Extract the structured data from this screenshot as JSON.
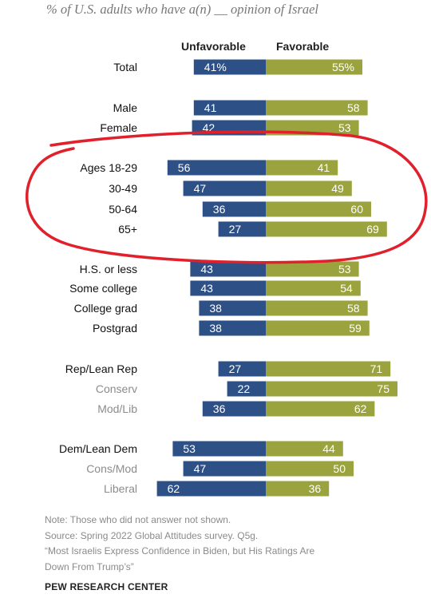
{
  "subtitle": "% of U.S. adults who have a(n) __ opinion of Israel",
  "legend": {
    "unfavorable": "Unfavorable",
    "favorable": "Favorable"
  },
  "colors": {
    "unfavorable": "#2d5087",
    "favorable": "#9aa33d",
    "annotation": "#e0212b"
  },
  "notes": {
    "line1": "Note: Those who did not answer not shown.",
    "line2": "Source: Spring 2022 Global Attitudes survey. Q5g.",
    "line3": "“Most Israelis Express Confidence in Biden, but His Ratings Are",
    "line4": "Down From Trump’s”"
  },
  "source": "PEW RESEARCH CENTER",
  "chart_data": {
    "type": "bar",
    "orientation": "horizontal-diverging",
    "series": [
      {
        "name": "Unfavorable",
        "values": [
          41,
          41,
          42,
          56,
          47,
          36,
          27,
          43,
          43,
          38,
          38,
          27,
          22,
          36,
          53,
          47,
          62
        ]
      },
      {
        "name": "Favorable",
        "values": [
          55,
          58,
          53,
          41,
          49,
          60,
          69,
          53,
          54,
          58,
          59,
          71,
          75,
          62,
          44,
          50,
          36
        ]
      }
    ],
    "rows": [
      {
        "label": "Total",
        "unfav": 41,
        "fav": 55,
        "unfav_label": "41%",
        "fav_label": "55%",
        "style": "main"
      },
      {
        "label": "Male",
        "unfav": 41,
        "fav": 58,
        "unfav_label": "41",
        "fav_label": "58",
        "style": "main"
      },
      {
        "label": "Female",
        "unfav": 42,
        "fav": 53,
        "unfav_label": "42",
        "fav_label": "53",
        "style": "main"
      },
      {
        "label": "Ages 18-29",
        "unfav": 56,
        "fav": 41,
        "unfav_label": "56",
        "fav_label": "41",
        "style": "main"
      },
      {
        "label": "30-49",
        "unfav": 47,
        "fav": 49,
        "unfav_label": "47",
        "fav_label": "49",
        "style": "main"
      },
      {
        "label": "50-64",
        "unfav": 36,
        "fav": 60,
        "unfav_label": "36",
        "fav_label": "60",
        "style": "main"
      },
      {
        "label": "65+",
        "unfav": 27,
        "fav": 69,
        "unfav_label": "27",
        "fav_label": "69",
        "style": "main"
      },
      {
        "label": "H.S. or less",
        "unfav": 43,
        "fav": 53,
        "unfav_label": "43",
        "fav_label": "53",
        "style": "main"
      },
      {
        "label": "Some college",
        "unfav": 43,
        "fav": 54,
        "unfav_label": "43",
        "fav_label": "54",
        "style": "main"
      },
      {
        "label": "College grad",
        "unfav": 38,
        "fav": 58,
        "unfav_label": "38",
        "fav_label": "58",
        "style": "main"
      },
      {
        "label": "Postgrad",
        "unfav": 38,
        "fav": 59,
        "unfav_label": "38",
        "fav_label": "59",
        "style": "main"
      },
      {
        "label": "Rep/Lean Rep",
        "unfav": 27,
        "fav": 71,
        "unfav_label": "27",
        "fav_label": "71",
        "style": "main"
      },
      {
        "label": "Conserv",
        "unfav": 22,
        "fav": 75,
        "unfav_label": "22",
        "fav_label": "75",
        "style": "sub"
      },
      {
        "label": "Mod/Lib",
        "unfav": 36,
        "fav": 62,
        "unfav_label": "36",
        "fav_label": "62",
        "style": "sub"
      },
      {
        "label": "Dem/Lean Dem",
        "unfav": 53,
        "fav": 44,
        "unfav_label": "53",
        "fav_label": "44",
        "style": "main"
      },
      {
        "label": "Cons/Mod",
        "unfav": 47,
        "fav": 50,
        "unfav_label": "47",
        "fav_label": "50",
        "style": "sub"
      },
      {
        "label": "Liberal",
        "unfav": 62,
        "fav": 36,
        "unfav_label": "62",
        "fav_label": "36",
        "style": "sub"
      }
    ],
    "annotation": "hand-drawn red circle around the Ages 18-29, 30-49, 50-64 and 65+ rows"
  }
}
